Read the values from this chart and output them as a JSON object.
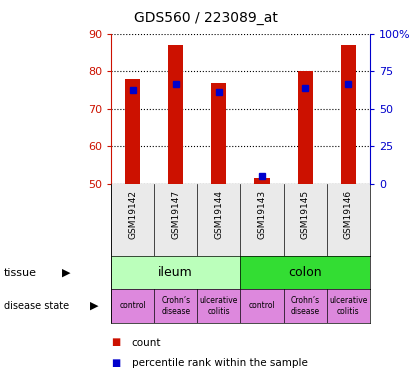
{
  "title": "GDS560 / 223089_at",
  "samples": [
    "GSM19142",
    "GSM19147",
    "GSM19144",
    "GSM19143",
    "GSM19145",
    "GSM19146"
  ],
  "count_values": [
    78.0,
    87.0,
    77.0,
    51.5,
    80.0,
    87.0
  ],
  "percentile_values": [
    75.0,
    76.5,
    74.5,
    52.0,
    75.5,
    76.5
  ],
  "ylim_left": [
    50,
    90
  ],
  "ylim_right": [
    0,
    100
  ],
  "yticks_left": [
    50,
    60,
    70,
    80,
    90
  ],
  "yticks_right": [
    0,
    25,
    50,
    75,
    100
  ],
  "ytick_labels_right": [
    "0",
    "25",
    "50",
    "75",
    "100%"
  ],
  "bar_color": "#cc1100",
  "percentile_color": "#0000cc",
  "bar_width": 0.35,
  "tissue_ileum_color": "#bbffbb",
  "tissue_colon_color": "#33dd33",
  "disease_color": "#dd88dd",
  "tick_label_color_left": "#cc1100",
  "tick_label_color_right": "#0000cc",
  "disease_labels": [
    "control",
    "Crohn’s\ndisease",
    "ulcerative\ncolitis",
    "control",
    "Crohn’s\ndisease",
    "ulcerative\ncolitis"
  ],
  "background_color": "#ffffff"
}
